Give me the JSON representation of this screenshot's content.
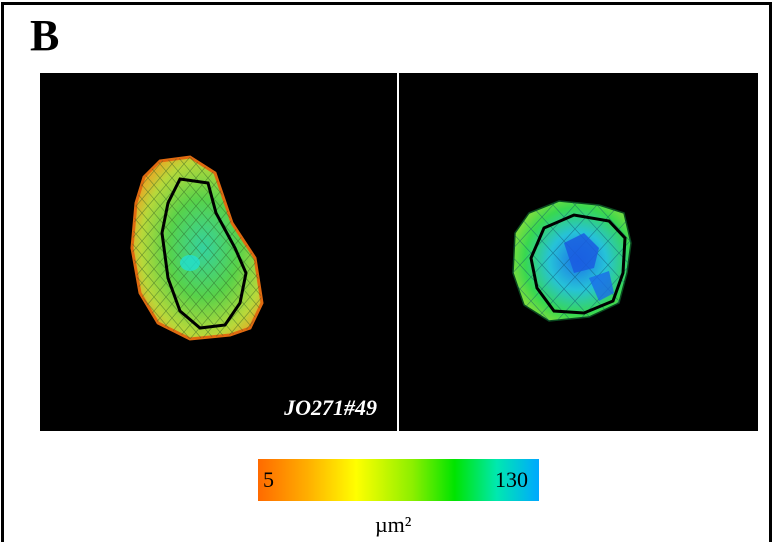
{
  "figure": {
    "panel_label": "B",
    "specimen_id": "JO271#49",
    "colorbar": {
      "min_label": "5",
      "max_label": "130",
      "unit": "µm²",
      "colors": [
        "#ff6a00",
        "#ffb000",
        "#ffff00",
        "#8cef00",
        "#00e400",
        "#00e8b0",
        "#00a8ff"
      ]
    },
    "images": [
      {
        "name": "left-cell-area-map",
        "description_colors": [
          "#7ccf2a",
          "#2ed69a"
        ]
      },
      {
        "name": "right-cell-area-map",
        "description_colors": [
          "#22d07a",
          "#1a6be8"
        ]
      }
    ]
  }
}
